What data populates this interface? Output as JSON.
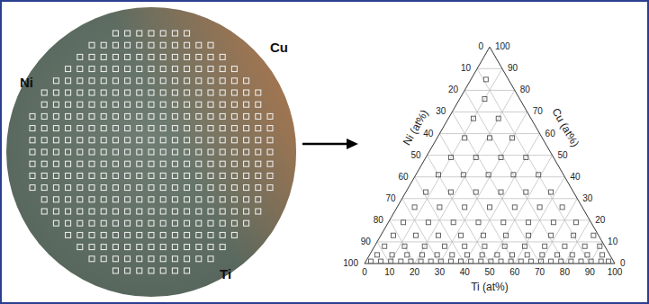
{
  "chart_data": {
    "type": "ternary",
    "wafer_labels": [
      "Ni",
      "Cu",
      "Ti"
    ],
    "left_label": "Ni (at%)",
    "right_label": "Cu (at%)",
    "bottom_label": "Ti (at%)",
    "ni_ticks": [
      0,
      10,
      20,
      30,
      40,
      50,
      60,
      70,
      80,
      90,
      100
    ],
    "cu_ticks": [
      0,
      10,
      20,
      30,
      40,
      50,
      60,
      70,
      80,
      90,
      100
    ],
    "ti_ticks": [
      0,
      10,
      20,
      30,
      40,
      50,
      60,
      70,
      80,
      90,
      100
    ],
    "grid": true,
    "marker": "square",
    "points": [
      [
        2,
        1,
        97
      ],
      [
        6,
        1,
        93
      ],
      [
        10,
        1,
        89
      ],
      [
        14,
        1,
        85
      ],
      [
        18,
        1,
        81
      ],
      [
        22,
        1,
        77
      ],
      [
        26,
        1,
        73
      ],
      [
        30,
        1,
        69
      ],
      [
        34,
        1,
        65
      ],
      [
        38,
        1,
        61
      ],
      [
        42,
        1,
        57
      ],
      [
        46,
        1,
        53
      ],
      [
        50,
        1,
        49
      ],
      [
        54,
        1,
        45
      ],
      [
        58,
        1,
        41
      ],
      [
        62,
        1,
        37
      ],
      [
        66,
        1,
        33
      ],
      [
        70,
        1,
        29
      ],
      [
        74,
        1,
        25
      ],
      [
        78,
        1,
        21
      ],
      [
        82,
        1,
        17
      ],
      [
        86,
        1,
        13
      ],
      [
        90,
        1,
        9
      ],
      [
        94,
        1,
        5
      ],
      [
        97,
        1,
        2
      ],
      [
        3,
        4,
        93
      ],
      [
        9,
        4,
        87
      ],
      [
        15,
        4,
        81
      ],
      [
        21,
        4,
        75
      ],
      [
        27,
        4,
        69
      ],
      [
        33,
        4,
        63
      ],
      [
        39,
        4,
        57
      ],
      [
        45,
        4,
        51
      ],
      [
        51,
        4,
        45
      ],
      [
        57,
        4,
        39
      ],
      [
        63,
        4,
        33
      ],
      [
        69,
        4,
        27
      ],
      [
        75,
        4,
        21
      ],
      [
        81,
        4,
        15
      ],
      [
        87,
        4,
        9
      ],
      [
        93,
        4,
        3
      ],
      [
        4,
        8,
        88
      ],
      [
        12,
        8,
        80
      ],
      [
        20,
        8,
        72
      ],
      [
        28,
        8,
        64
      ],
      [
        36,
        8,
        56
      ],
      [
        44,
        8,
        48
      ],
      [
        52,
        8,
        40
      ],
      [
        60,
        8,
        32
      ],
      [
        68,
        8,
        24
      ],
      [
        76,
        8,
        16
      ],
      [
        84,
        8,
        8
      ],
      [
        90,
        8,
        2
      ],
      [
        5,
        13,
        82
      ],
      [
        14,
        13,
        73
      ],
      [
        23,
        13,
        64
      ],
      [
        32,
        13,
        55
      ],
      [
        41,
        13,
        46
      ],
      [
        50,
        13,
        37
      ],
      [
        59,
        13,
        28
      ],
      [
        68,
        13,
        19
      ],
      [
        77,
        13,
        10
      ],
      [
        85,
        13,
        2
      ],
      [
        6,
        19,
        75
      ],
      [
        16,
        19,
        65
      ],
      [
        26,
        19,
        55
      ],
      [
        36,
        19,
        45
      ],
      [
        46,
        19,
        35
      ],
      [
        56,
        19,
        25
      ],
      [
        66,
        19,
        15
      ],
      [
        75,
        19,
        6
      ],
      [
        7,
        26,
        67
      ],
      [
        17,
        26,
        57
      ],
      [
        27,
        26,
        47
      ],
      [
        37,
        26,
        37
      ],
      [
        47,
        26,
        27
      ],
      [
        57,
        26,
        17
      ],
      [
        66,
        26,
        8
      ],
      [
        8,
        33,
        59
      ],
      [
        18,
        33,
        49
      ],
      [
        28,
        33,
        39
      ],
      [
        38,
        33,
        29
      ],
      [
        48,
        33,
        19
      ],
      [
        58,
        33,
        9
      ],
      [
        9,
        41,
        50
      ],
      [
        19,
        41,
        40
      ],
      [
        29,
        41,
        30
      ],
      [
        39,
        41,
        20
      ],
      [
        49,
        41,
        10
      ],
      [
        10,
        49,
        41
      ],
      [
        20,
        49,
        31
      ],
      [
        30,
        49,
        21
      ],
      [
        40,
        49,
        11
      ],
      [
        11,
        58,
        31
      ],
      [
        21,
        58,
        21
      ],
      [
        30,
        58,
        12
      ],
      [
        10,
        67,
        23
      ],
      [
        20,
        67,
        13
      ],
      [
        10,
        76,
        14
      ],
      [
        6,
        85,
        9
      ]
    ]
  }
}
